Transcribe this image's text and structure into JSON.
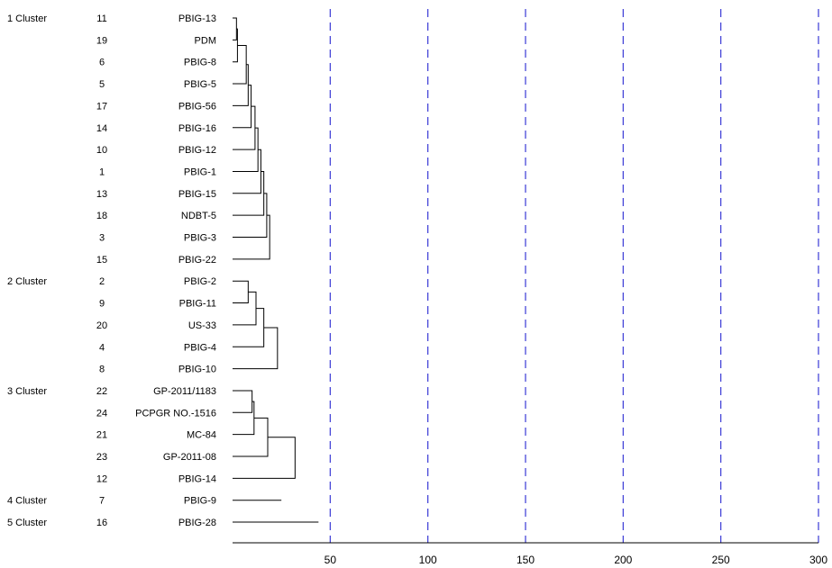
{
  "chart_data": {
    "type": "dendrogram",
    "title": "",
    "xlabel": "",
    "ylabel": "",
    "xlim": [
      0,
      300
    ],
    "x_ticks": [
      "50",
      "100",
      "150",
      "200",
      "250",
      "300"
    ],
    "gridlines": "vertical dashed blue at each x tick",
    "leaves": [
      {
        "num": "11",
        "name": "PBIG-13"
      },
      {
        "num": "19",
        "name": "PDM"
      },
      {
        "num": "6",
        "name": "PBIG-8"
      },
      {
        "num": "5",
        "name": "PBIG-5"
      },
      {
        "num": "17",
        "name": "PBIG-56"
      },
      {
        "num": "14",
        "name": "PBIG-16"
      },
      {
        "num": "10",
        "name": "PBIG-12"
      },
      {
        "num": "1",
        "name": "PBIG-1"
      },
      {
        "num": "13",
        "name": "PBIG-15"
      },
      {
        "num": "18",
        "name": "NDBT-5"
      },
      {
        "num": "3",
        "name": "PBIG-3"
      },
      {
        "num": "15",
        "name": "PBIG-22"
      },
      {
        "num": "2",
        "name": "PBIG-2"
      },
      {
        "num": "9",
        "name": "PBIG-11"
      },
      {
        "num": "20",
        "name": "US-33"
      },
      {
        "num": "4",
        "name": "PBIG-4"
      },
      {
        "num": "8",
        "name": "PBIG-10"
      },
      {
        "num": "22",
        "name": "GP-2011/1183"
      },
      {
        "num": "24",
        "name": "PCPGR NO.-1516"
      },
      {
        "num": "21",
        "name": "MC-84"
      },
      {
        "num": "23",
        "name": "GP-2011-08"
      },
      {
        "num": "12",
        "name": "PBIG-14"
      },
      {
        "num": "7",
        "name": "PBIG-9"
      },
      {
        "num": "16",
        "name": "PBIG-28"
      }
    ],
    "clusters": [
      {
        "label": "1 Cluster",
        "first_leaf": 0,
        "leaf_count": 12
      },
      {
        "label": "2 Cluster",
        "first_leaf": 12,
        "leaf_count": 5
      },
      {
        "label": "3 Cluster",
        "first_leaf": 17,
        "leaf_count": 5
      },
      {
        "label": "4 Cluster",
        "first_leaf": 22,
        "leaf_count": 1
      },
      {
        "label": "5 Cluster",
        "first_leaf": 23,
        "leaf_count": 1
      }
    ],
    "merges": [
      {
        "a": "L0",
        "b": "L1",
        "height": 2
      },
      {
        "a": "M0",
        "b": "L2",
        "height": 2.5
      },
      {
        "a": "M1",
        "b": "L3",
        "height": 7
      },
      {
        "a": "M2",
        "b": "L4",
        "height": 8
      },
      {
        "a": "M3",
        "b": "L5",
        "height": 9.5
      },
      {
        "a": "M4",
        "b": "L6",
        "height": 11.5
      },
      {
        "a": "M5",
        "b": "L7",
        "height": 13
      },
      {
        "a": "M6",
        "b": "L8",
        "height": 14.5
      },
      {
        "a": "M7",
        "b": "L9",
        "height": 16
      },
      {
        "a": "M8",
        "b": "L10",
        "height": 17.5
      },
      {
        "a": "M9",
        "b": "L11",
        "height": 19
      },
      {
        "a": "L12",
        "b": "L13",
        "height": 8
      },
      {
        "a": "M11",
        "b": "L14",
        "height": 12
      },
      {
        "a": "M12",
        "b": "L15",
        "height": 16
      },
      {
        "a": "M13",
        "b": "L16",
        "height": 23
      },
      {
        "a": "L17",
        "b": "L18",
        "height": 10
      },
      {
        "a": "M15",
        "b": "L19",
        "height": 11
      },
      {
        "a": "M16",
        "b": "L20",
        "height": 18
      },
      {
        "a": "M17",
        "b": "L21",
        "height": 32
      }
    ],
    "singleton_lines": [
      {
        "leaf": 22,
        "height": 25
      },
      {
        "leaf": 23,
        "height": 44
      }
    ]
  }
}
